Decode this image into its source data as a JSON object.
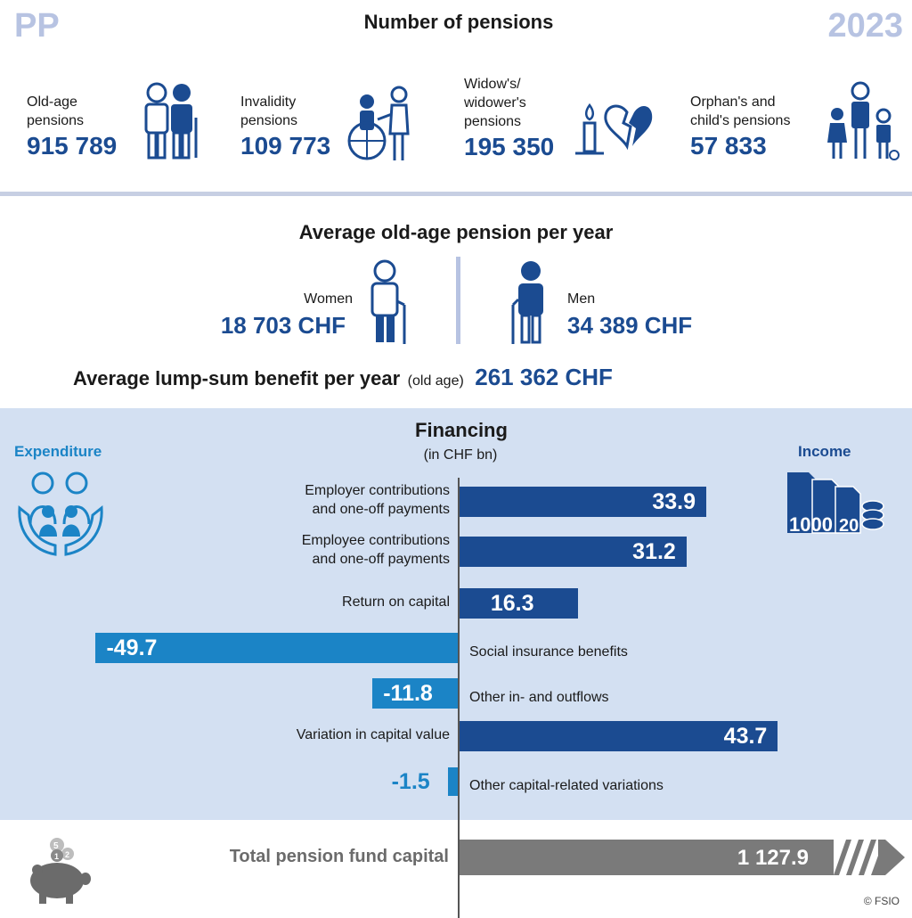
{
  "header": {
    "left_tag": "PP",
    "title": "Number of pensions",
    "year": "2023"
  },
  "pensions": [
    {
      "label_lines": [
        "Old-age",
        "pensions"
      ],
      "value": "915 789",
      "icon": "elderly-couple-icon"
    },
    {
      "label_lines": [
        "Invalidity",
        "pensions"
      ],
      "value": "109 773",
      "icon": "wheelchair-icon"
    },
    {
      "label_lines": [
        "Widow's/",
        "widower's",
        "pensions"
      ],
      "value": "195 350",
      "icon": "candle-broken-heart-icon"
    },
    {
      "label_lines": [
        "Orphan's and",
        "child's pensions"
      ],
      "value": "57 833",
      "icon": "children-icon"
    }
  ],
  "average_pension": {
    "title": "Average old-age pension per year",
    "women_label": "Women",
    "women_value": "18 703 CHF",
    "men_label": "Men",
    "men_value": "34 389 CHF"
  },
  "lump_sum": {
    "label": "Average lump-sum benefit per year",
    "note": "(old age)",
    "value": "261 362 CHF"
  },
  "financing": {
    "title": "Financing",
    "subtitle": "(in CHF bn)",
    "expenditure_label": "Expenditure",
    "income_label": "Income",
    "income_icon_text": "1000",
    "income_icon_text2": "20"
  },
  "chart_data": {
    "type": "bar",
    "orientation": "horizontal",
    "title": "Financing",
    "unit": "(in CHF bn)",
    "categories": [
      "Employer contributions and one-off payments",
      "Employee contributions and one-off payments",
      "Return on capital",
      "Social insurance benefits",
      "Other in- and outflows",
      "Variation in capital value",
      "Other capital-related variations"
    ],
    "category_lines": [
      [
        "Employer contributions",
        "and one-off payments"
      ],
      [
        "Employee contributions",
        "and one-off payments"
      ],
      [
        "Return on capital"
      ],
      [
        "Social insurance benefits"
      ],
      [
        "Other in- and outflows"
      ],
      [
        "Variation in capital value"
      ],
      [
        "Other capital-related variations"
      ]
    ],
    "values": [
      33.9,
      31.2,
      16.3,
      -49.7,
      -11.8,
      43.7,
      -1.5
    ],
    "value_labels": [
      "33.9",
      "31.2",
      "16.3",
      "-49.7",
      "-11.8",
      "43.7",
      "-1.5"
    ],
    "colors": {
      "positive": "#1b4b91",
      "negative": "#1b84c6",
      "total": "#7a7a7a"
    },
    "total": {
      "label": "Total pension fund capital",
      "value": 1127.9,
      "value_label": "1 127.9"
    }
  },
  "footer": {
    "copyright": "© FSIO",
    "piggy_coins": [
      "5",
      "1",
      "2"
    ]
  }
}
